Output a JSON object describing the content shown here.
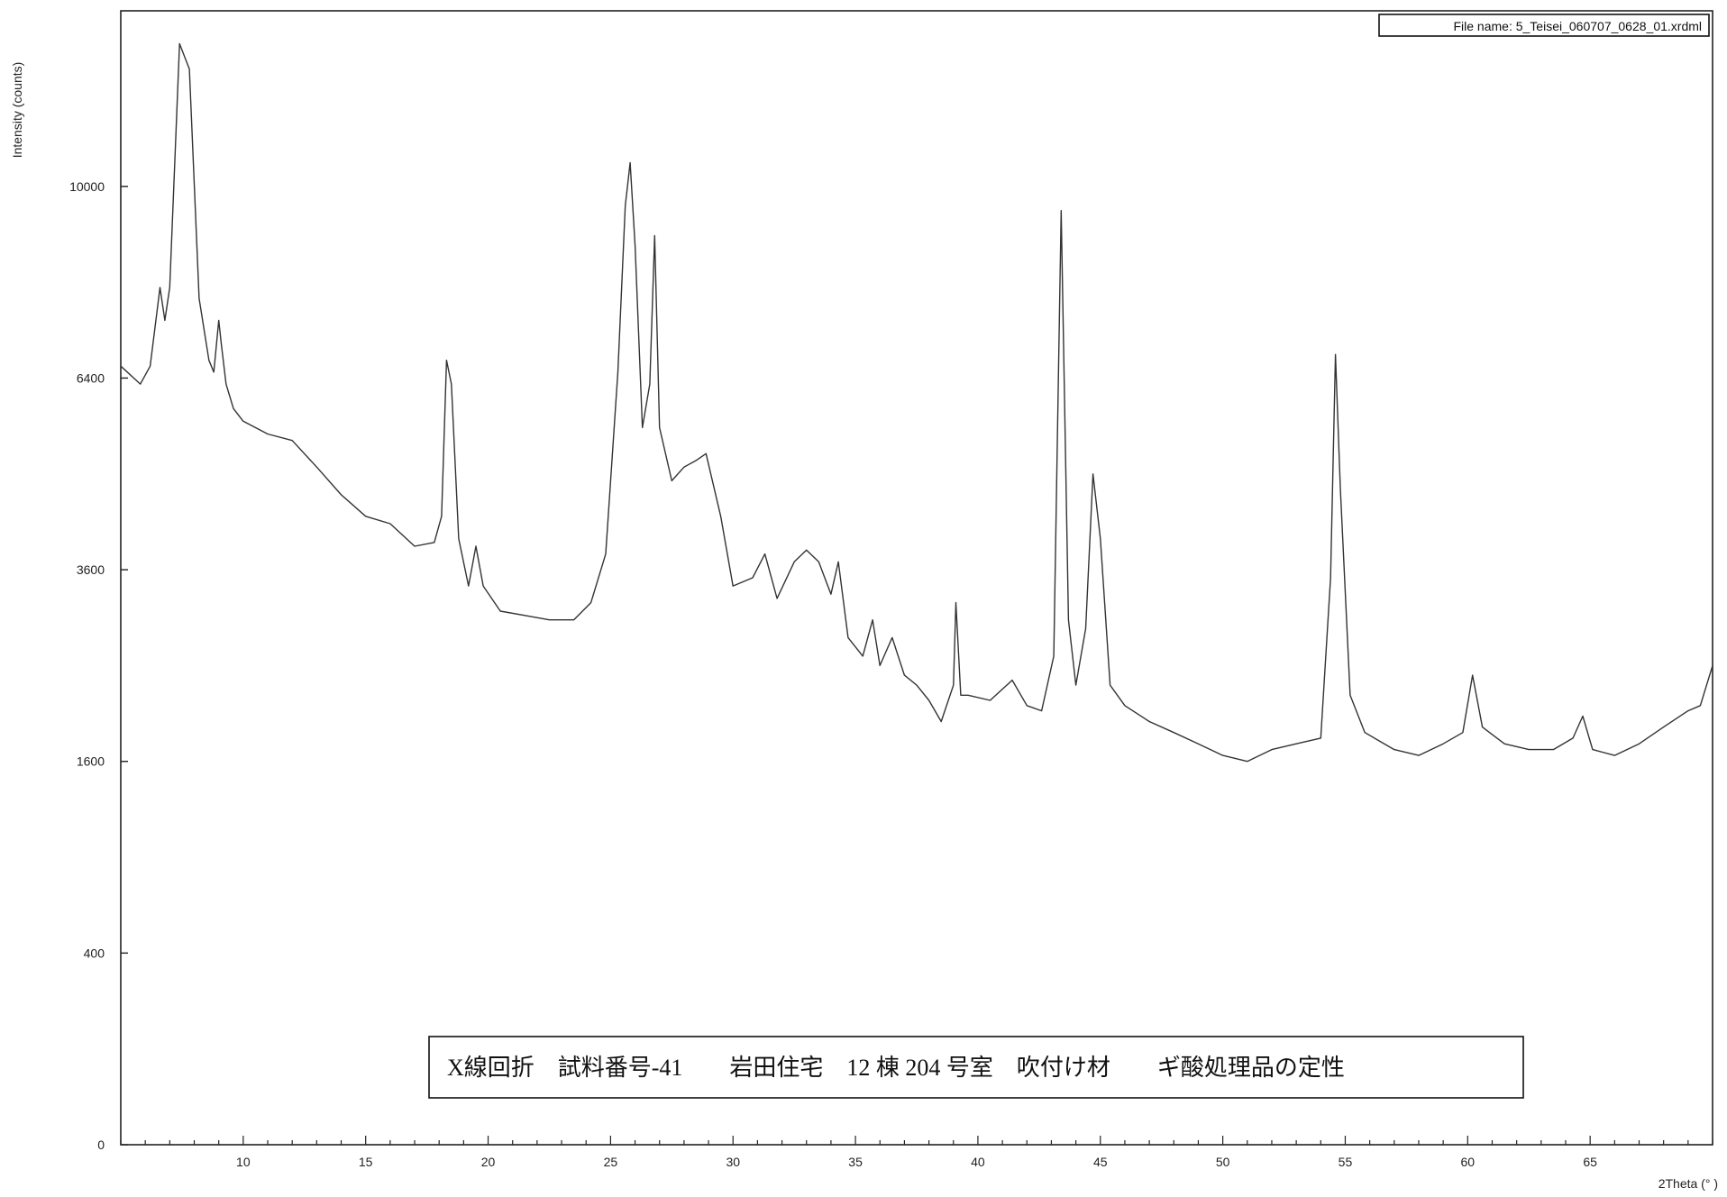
{
  "chart_data": {
    "type": "line",
    "title": "",
    "xlabel": "2Theta (° )",
    "ylabel": "Intensity (counts)",
    "file_name_label": "File name: 5_Teisei_060707_0628_01.xrdml",
    "caption": "X線回折　試料番号-41　　岩田住宅　12 棟 204 号室　吹付け材　　ギ酸処理品の定性",
    "xlim": [
      5,
      70
    ],
    "xticks": [
      10,
      15,
      20,
      25,
      30,
      35,
      40,
      45,
      50,
      55,
      60,
      65
    ],
    "yscale": "sqrt",
    "ylim": [
      0,
      14000
    ],
    "yticks": [
      0,
      400,
      1600,
      3600,
      6400,
      10000
    ],
    "grid": false,
    "series": [
      {
        "x": [
          5.0,
          5.8,
          6.2,
          6.6,
          6.8,
          7.0,
          7.4,
          7.8,
          8.2,
          8.6,
          8.8,
          9.0,
          9.1,
          9.3,
          9.6,
          10.0,
          11.0,
          12.0,
          13.0,
          14.0,
          15.0,
          16.0,
          17.0,
          17.8,
          18.1,
          18.3,
          18.5,
          18.8,
          19.2,
          19.5,
          19.8,
          20.5,
          21.5,
          22.5,
          23.5,
          24.2,
          24.8,
          25.3,
          25.6,
          25.8,
          26.0,
          26.3,
          26.6,
          26.8,
          27.0,
          27.5,
          28.0,
          28.5,
          28.9,
          29.5,
          30.0,
          30.8,
          31.3,
          31.8,
          32.5,
          33.0,
          33.5,
          34.0,
          34.3,
          34.7,
          35.3,
          35.7,
          36.0,
          36.5,
          37.0,
          37.5,
          38.0,
          38.5,
          39.0,
          39.1,
          39.3,
          39.6,
          40.5,
          41.4,
          42.0,
          42.6,
          43.1,
          43.4,
          43.7,
          44.0,
          44.4,
          44.7,
          45.0,
          45.4,
          46.0,
          47.0,
          48.0,
          49.0,
          50.0,
          51.0,
          52.0,
          53.0,
          54.0,
          54.4,
          54.6,
          54.8,
          55.2,
          55.8,
          57.0,
          58.0,
          59.0,
          59.8,
          60.2,
          60.6,
          61.5,
          62.5,
          63.5,
          64.3,
          64.7,
          65.1,
          66.0,
          67.0,
          68.0,
          69.0,
          69.5,
          70.0
        ],
        "values": [
          6600,
          6300,
          6600,
          8000,
          7400,
          8000,
          13200,
          12600,
          7800,
          6700,
          6500,
          7400,
          7000,
          6300,
          5900,
          5700,
          5500,
          5400,
          5000,
          4600,
          4300,
          4200,
          3900,
          3950,
          4300,
          6700,
          6300,
          4000,
          3400,
          3900,
          3400,
          3100,
          3050,
          3000,
          3000,
          3200,
          3800,
          6500,
          9600,
          10500,
          8800,
          5600,
          6300,
          9000,
          5600,
          4800,
          5000,
          5100,
          5200,
          4300,
          3400,
          3500,
          3800,
          3250,
          3700,
          3850,
          3700,
          3300,
          3700,
          2800,
          2600,
          3000,
          2500,
          2800,
          2400,
          2300,
          2150,
          1950,
          2300,
          3200,
          2200,
          2200,
          2150,
          2350,
          2100,
          2050,
          2600,
          9500,
          3000,
          2300,
          2900,
          4900,
          4000,
          2300,
          2100,
          1950,
          1850,
          1750,
          1650,
          1600,
          1700,
          1750,
          1800,
          3500,
          6800,
          4700,
          2200,
          1850,
          1700,
          1650,
          1750,
          1850,
          2400,
          1900,
          1750,
          1700,
          1700,
          1800,
          2000,
          1700,
          1650,
          1750,
          1900,
          2050,
          2100,
          2500
        ]
      }
    ]
  }
}
